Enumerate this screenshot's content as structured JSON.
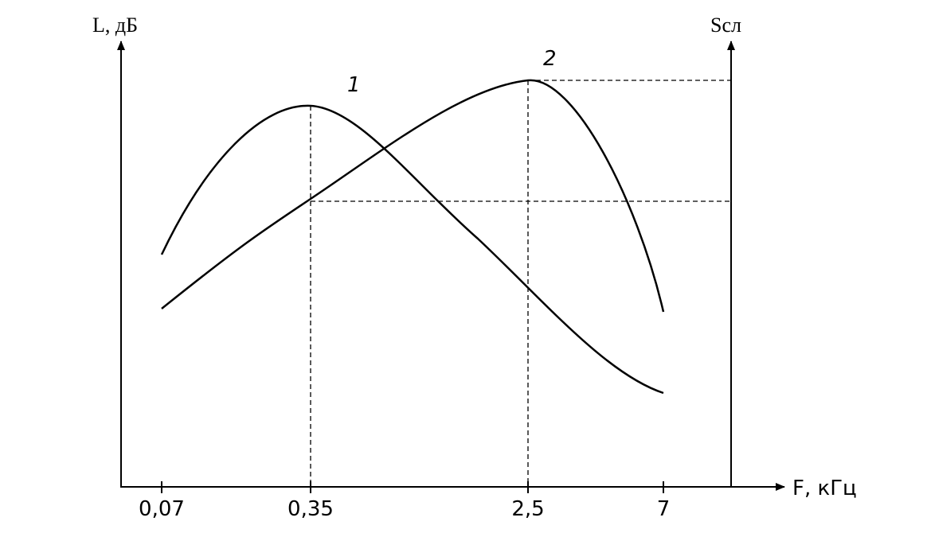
{
  "y_axis_label": "L, дБ",
  "y2_axis_label": "Sсл",
  "x_axis_label": "F, кГц",
  "x_ticks": [
    "0,07",
    "0,35",
    "2,5",
    "7"
  ],
  "curve_labels": [
    "1",
    "2"
  ]
}
